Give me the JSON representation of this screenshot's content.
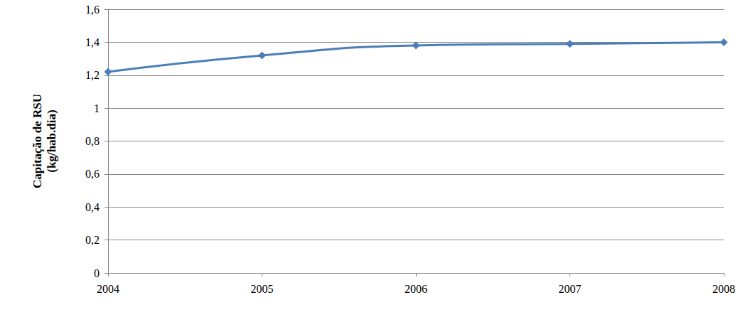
{
  "chart_data": {
    "type": "line",
    "ylabel": [
      "Capitação de RSU",
      "(kg/hab.dia)"
    ],
    "categories": [
      "2004",
      "2005",
      "2006",
      "2007",
      "2008"
    ],
    "values": [
      1.22,
      1.32,
      1.38,
      1.39,
      1.4
    ],
    "color": "#4a7ebb",
    "marker": "diamond",
    "ylim": [
      0,
      1.6
    ],
    "yticks": [
      0,
      {
        "value": 0.2,
        "label": "0,2"
      },
      {
        "value": 0.4,
        "label": "0,4"
      },
      {
        "value": 0.6,
        "label": "0,6"
      },
      {
        "value": 0.8,
        "label": "0,8"
      },
      1,
      {
        "value": 1.2,
        "label": "1,2"
      },
      {
        "value": 1.4,
        "label": "1,4"
      },
      {
        "value": 1.6,
        "label": "1,6"
      }
    ],
    "grid": true
  }
}
